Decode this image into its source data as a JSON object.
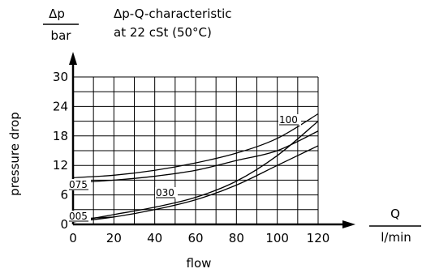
{
  "chart_data": {
    "type": "line",
    "title": "Δp-Q-characteristic",
    "subtitle": "at 22 cSt (50°C)",
    "ylabel": "pressure drop",
    "xlabel": "flow",
    "y_unit_top": "Δp",
    "y_unit_bottom": "bar",
    "x_unit_top": "Q",
    "x_unit_bottom": "l/min",
    "xlim": [
      0,
      120
    ],
    "ylim": [
      0,
      30
    ],
    "x_ticks": [
      "0",
      "20",
      "40",
      "60",
      "80",
      "100",
      "120"
    ],
    "y_ticks": [
      "0",
      "6",
      "12",
      "18",
      "24",
      "30"
    ],
    "grid": true,
    "series": [
      {
        "name": "100",
        "points": [
          [
            0,
            9.5
          ],
          [
            20,
            10
          ],
          [
            40,
            11
          ],
          [
            60,
            12.5
          ],
          [
            80,
            14.5
          ],
          [
            100,
            17.5
          ],
          [
            120,
            22.5
          ]
        ]
      },
      {
        "name": "075",
        "points": [
          [
            0,
            8.5
          ],
          [
            20,
            9
          ],
          [
            40,
            9.8
          ],
          [
            60,
            11
          ],
          [
            80,
            13
          ],
          [
            100,
            15
          ],
          [
            120,
            19
          ]
        ]
      },
      {
        "name": "030",
        "points": [
          [
            0,
            0.5
          ],
          [
            20,
            2
          ],
          [
            40,
            3.5
          ],
          [
            60,
            5.5
          ],
          [
            80,
            8.8
          ],
          [
            100,
            14
          ],
          [
            120,
            21
          ]
        ]
      },
      {
        "name": "",
        "points": [
          [
            0,
            0.5
          ],
          [
            20,
            1.5
          ],
          [
            40,
            3
          ],
          [
            60,
            5
          ],
          [
            80,
            8
          ],
          [
            100,
            12
          ],
          [
            120,
            16
          ]
        ]
      },
      {
        "name": "005",
        "points": [
          [
            0,
            1
          ],
          [
            10,
            1.3
          ],
          [
            20,
            1.5
          ]
        ]
      }
    ]
  }
}
